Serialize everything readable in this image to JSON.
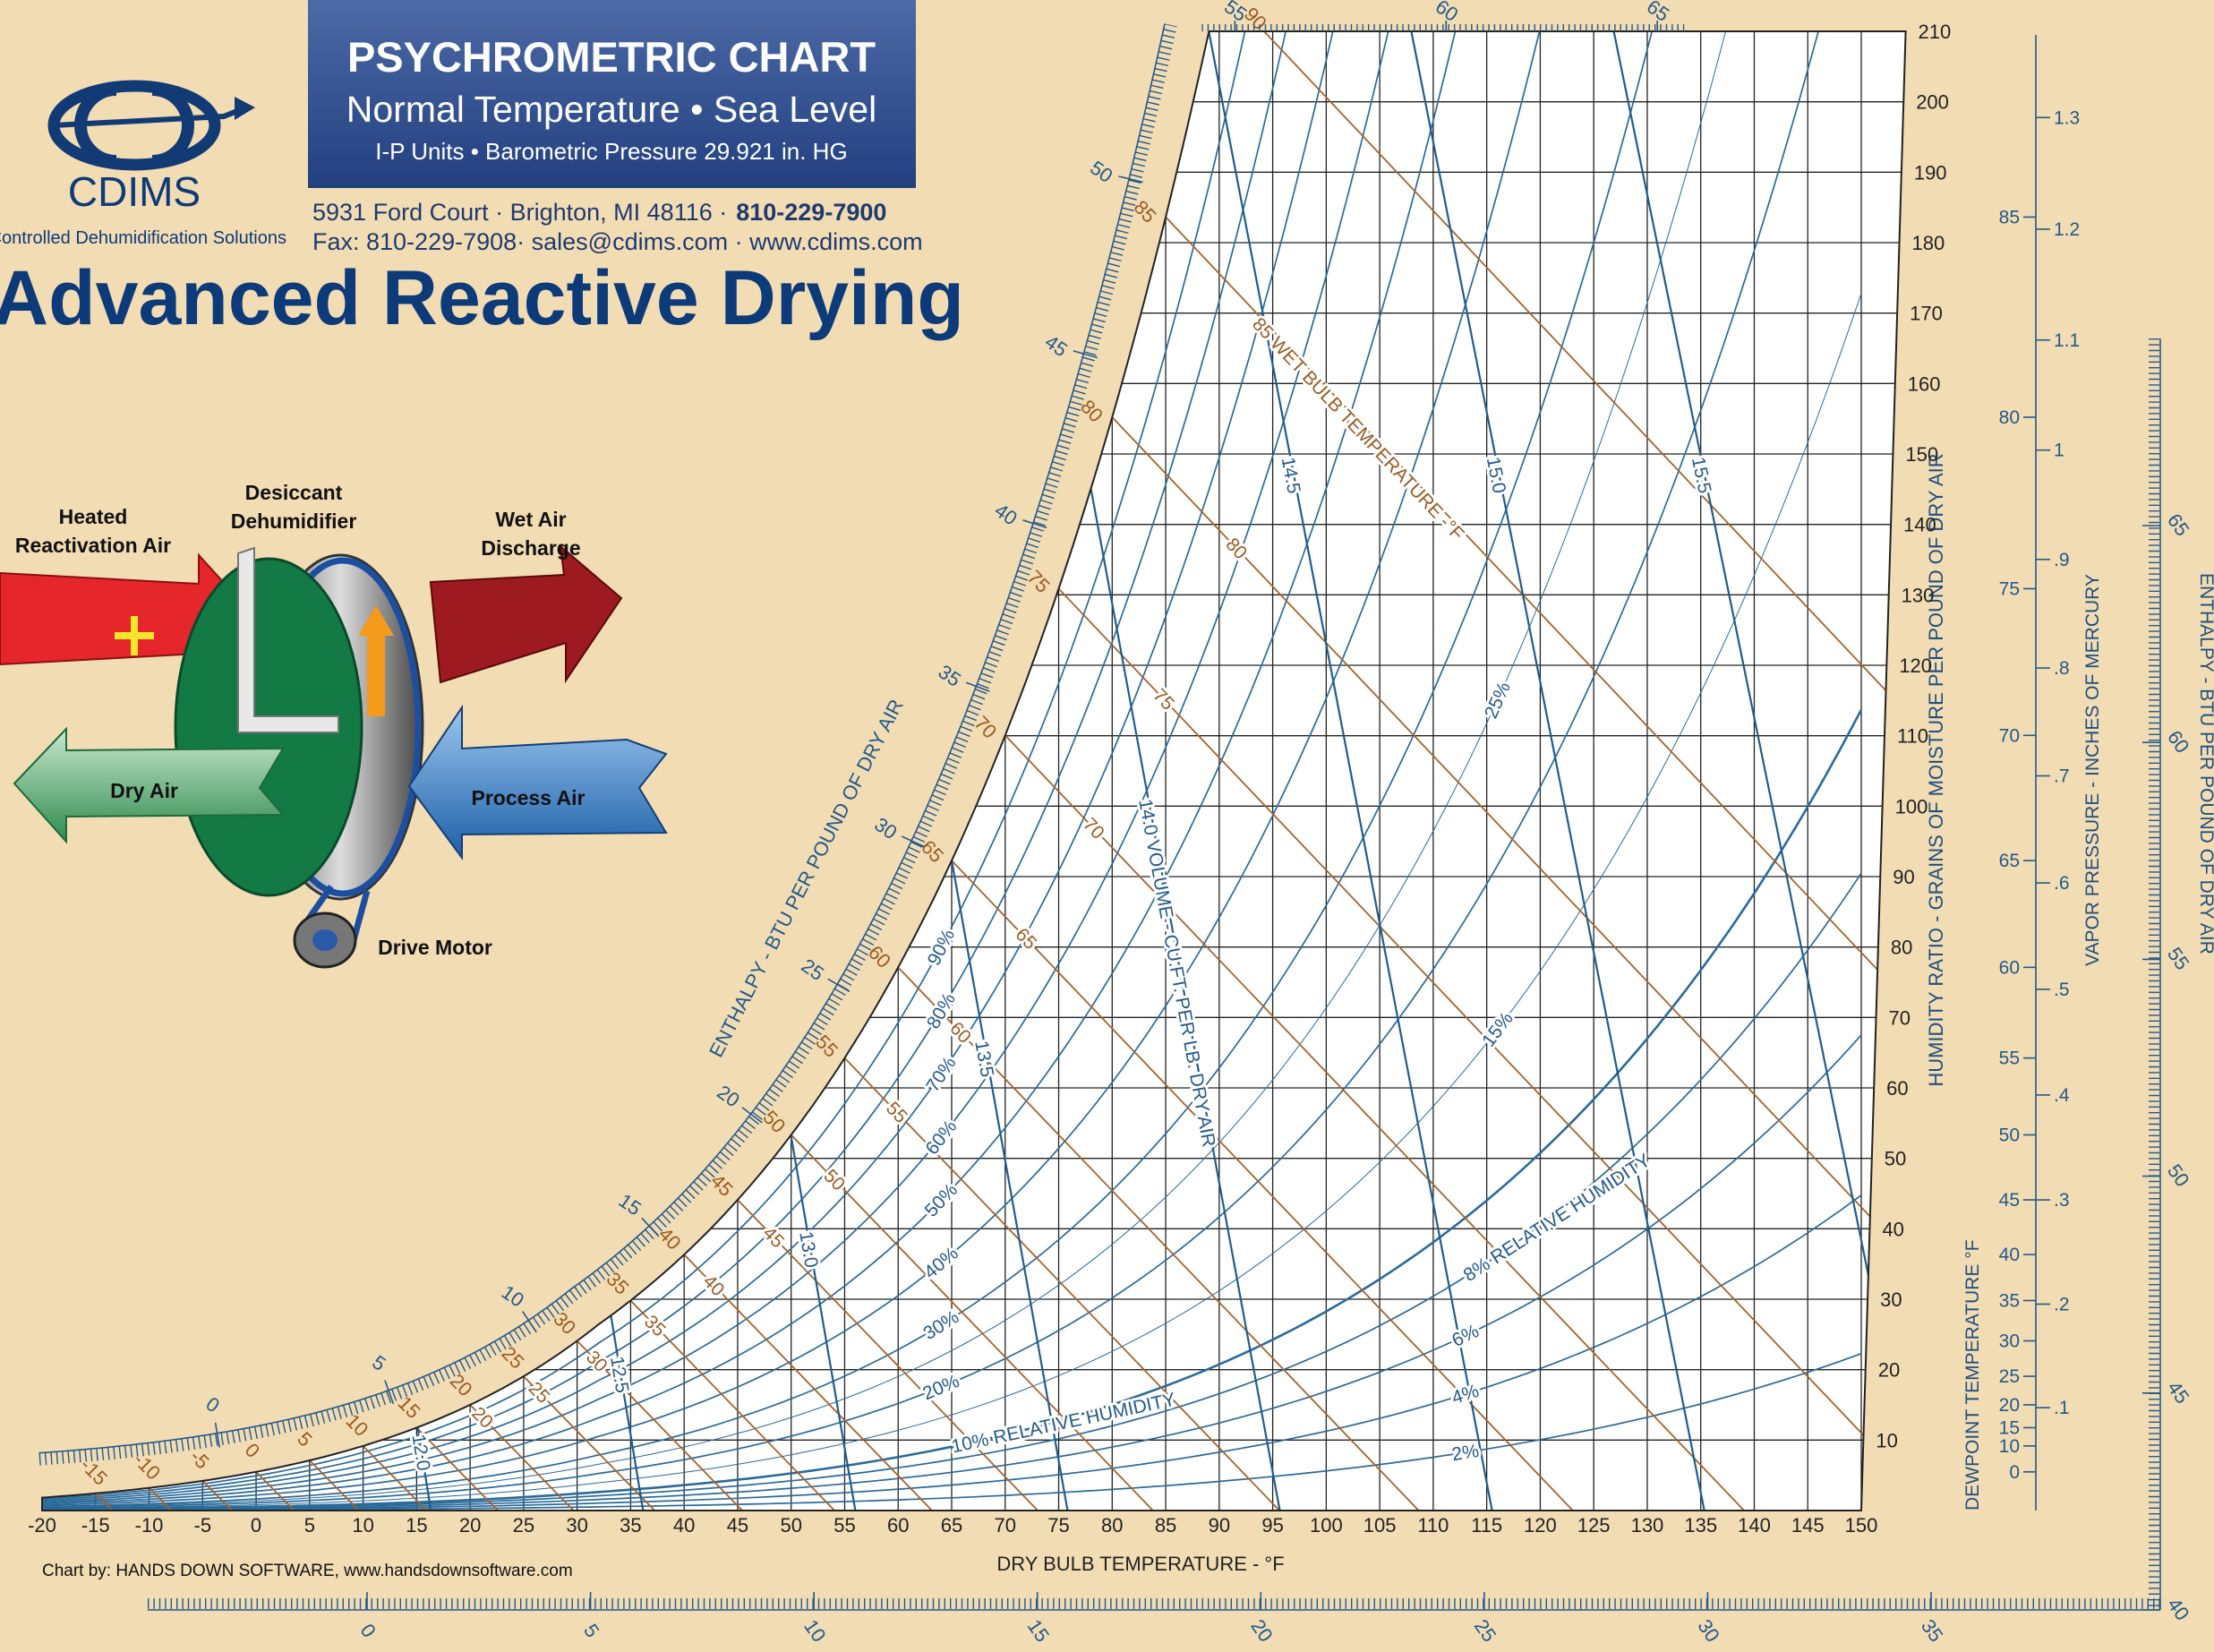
{
  "header": {
    "title": "PSYCHROMETRIC CHART",
    "subtitle": "Normal Temperature • Sea Level",
    "units": "I-P Units • Barometric Pressure 29.921 in. HG",
    "address": "5931 Ford Court · Brighton, MI 48116 ·",
    "phone": "810-229-7900",
    "contact": "Fax: 810-229-7908· sales@cdims.com · www.cdims.com",
    "headline": "Advanced Reactive Drying"
  },
  "logo": {
    "name": "CDIMS",
    "tagline": "Controlled Dehumidification Solutions"
  },
  "diagram": {
    "labels": [
      [
        "Heated",
        "Reactivation Air"
      ],
      [
        "Desiccant",
        "Dehumidifier"
      ],
      [
        "Wet Air",
        "Discharge"
      ],
      [
        "Dry Air"
      ],
      [
        "Process Air"
      ],
      [
        "Drive Motor"
      ]
    ]
  },
  "footer": {
    "credit": "Chart by: HANDS DOWN SOFTWARE, www.handsdownsoftware.com"
  },
  "chart_data": {
    "type": "psychrometric",
    "x_label": "DRY BULB TEMPERATURE - °F",
    "y_label": "HUMIDITY RATIO - GRAINS OF MOISTURE PER POUND OF DRY AIR",
    "xlim": [
      -20,
      150
    ],
    "xticks": [
      -20,
      -15,
      -10,
      -5,
      0,
      5,
      10,
      15,
      20,
      25,
      30,
      35,
      40,
      45,
      50,
      55,
      60,
      65,
      70,
      75,
      80,
      85,
      90,
      95,
      100,
      105,
      110,
      115,
      120,
      125,
      130,
      135,
      140,
      145,
      150
    ],
    "ylim": [
      0,
      210
    ],
    "yticks": [
      10,
      20,
      30,
      40,
      50,
      60,
      70,
      80,
      90,
      100,
      110,
      120,
      130,
      140,
      150,
      160,
      170,
      180,
      190,
      200,
      210
    ],
    "grid": true,
    "relative_humidity": {
      "values": [
        2,
        4,
        6,
        8,
        10,
        15,
        20,
        25,
        30,
        40,
        50,
        60,
        70,
        80,
        90
      ],
      "value_labels": [
        "2%",
        "4%",
        "6%",
        "8% RELATIVE HUMIDITY",
        "10% RELATIVE HUMIDITY",
        "15%",
        "20%",
        "25%",
        "30%",
        "40%",
        "50%",
        "60%",
        "70%",
        "80%",
        "90%"
      ],
      "color": "#2a6a9a"
    },
    "wet_bulb": {
      "title": "85 WET BULB TEMPERATURE -°F",
      "levels": [
        -15,
        -10,
        -5,
        0,
        5,
        10,
        15,
        20,
        25,
        30,
        35,
        40,
        45,
        50,
        55,
        60,
        65,
        70,
        75,
        80,
        85,
        90
      ],
      "color": "#a5642c"
    },
    "volume": {
      "levels": [
        {
          "value": 12,
          "label": "12.0"
        },
        12.5,
        {
          "value": 13,
          "label": "13.0"
        },
        13.5,
        {
          "value": 14,
          "label": "14.0 VOLUME - CU.FT. PER LB. DRY AIR"
        },
        14.5,
        {
          "value": 15,
          "label": "15.0"
        },
        15.5
      ],
      "color": "#1f5d8e"
    },
    "enthalpy": {
      "title": "ENTHALPY - BTU PER POUND OF DRY AIR",
      "ticks": [
        0,
        5,
        10,
        15,
        20,
        25,
        30,
        35,
        40,
        45,
        50,
        55,
        60,
        65
      ],
      "bottom_ticks": [
        0,
        5,
        10,
        15,
        20,
        25,
        30,
        35
      ],
      "right_ticks": [
        40,
        45,
        50,
        55,
        60,
        65
      ]
    },
    "dewpoint": {
      "title": "DEWPOINT TEMPERATURE °F",
      "ticks": [
        0,
        10,
        15,
        20,
        25,
        30,
        35,
        40,
        45,
        50,
        55,
        60,
        65,
        70,
        75,
        80,
        85
      ]
    },
    "vapor_pressure": {
      "title": "VAPOR PRESSURE - INCHES OF MERCURY",
      "ticks": [
        {
          "value": 0.1,
          "label": ".1"
        },
        {
          "value": 0.2,
          "label": ".2"
        },
        {
          "value": 0.3,
          "label": ".3"
        },
        {
          "value": 0.4,
          "label": ".4"
        },
        {
          "value": 0.5,
          "label": ".5"
        },
        {
          "value": 0.6,
          "label": ".6"
        },
        {
          "value": 0.7,
          "label": ".7"
        },
        {
          "value": 0.8,
          "label": ".8"
        },
        {
          "value": 0.9,
          "label": ".9"
        },
        1,
        1.1,
        1.2,
        1.3
      ]
    }
  }
}
